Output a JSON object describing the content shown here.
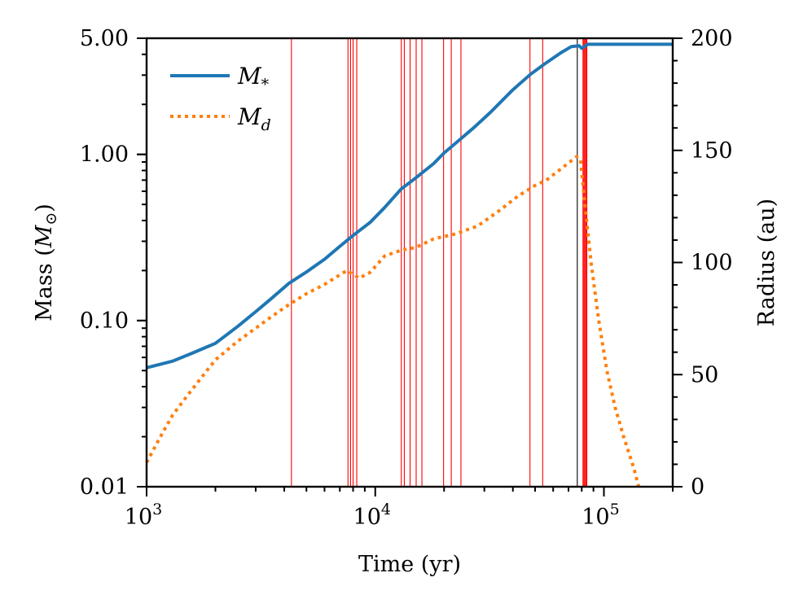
{
  "chart_data": {
    "type": "line",
    "x_scale": "log",
    "xlim": [
      1000,
      200000
    ],
    "xlabel": "Time (yr)",
    "x_ticks": [
      {
        "value": 1000,
        "base": "10",
        "exp": "3"
      },
      {
        "value": 10000,
        "base": "10",
        "exp": "4"
      },
      {
        "value": 100000,
        "base": "10",
        "exp": "5"
      }
    ],
    "left_axis": {
      "scale": "log",
      "ylim": [
        0.01,
        5.0
      ],
      "label_prefix": "Mass (",
      "label_symbol": "M",
      "label_sub": "⊙",
      "label_suffix": ")",
      "ticks": [
        {
          "value": 0.01,
          "label": "0.01"
        },
        {
          "value": 0.1,
          "label": "0.10"
        },
        {
          "value": 1.0,
          "label": "1.00"
        },
        {
          "value": 5.0,
          "label": "5.00"
        }
      ]
    },
    "right_axis": {
      "scale": "linear",
      "ylim": [
        0,
        200
      ],
      "label": "Radius (au)",
      "ticks": [
        {
          "value": 0,
          "label": "0"
        },
        {
          "value": 50,
          "label": "50"
        },
        {
          "value": 100,
          "label": "100"
        },
        {
          "value": 150,
          "label": "150"
        },
        {
          "value": 200,
          "label": "200"
        }
      ]
    },
    "legend_position": "top-left",
    "series": [
      {
        "name": "M*",
        "legend_symbol": "M",
        "legend_sub": "*",
        "color": "#1f77b4",
        "style": "solid",
        "points": [
          [
            1000,
            0.052
          ],
          [
            1300,
            0.057
          ],
          [
            1600,
            0.064
          ],
          [
            2000,
            0.073
          ],
          [
            2500,
            0.092
          ],
          [
            3000,
            0.113
          ],
          [
            3500,
            0.135
          ],
          [
            4200,
            0.168
          ],
          [
            5000,
            0.196
          ],
          [
            6000,
            0.234
          ],
          [
            7000,
            0.28
          ],
          [
            8000,
            0.325
          ],
          [
            9500,
            0.39
          ],
          [
            11000,
            0.48
          ],
          [
            13000,
            0.62
          ],
          [
            15000,
            0.72
          ],
          [
            18000,
            0.88
          ],
          [
            20000,
            1.02
          ],
          [
            23000,
            1.2
          ],
          [
            27000,
            1.45
          ],
          [
            32000,
            1.8
          ],
          [
            40000,
            2.45
          ],
          [
            48000,
            3.05
          ],
          [
            55000,
            3.5
          ],
          [
            65000,
            4.1
          ],
          [
            72000,
            4.45
          ],
          [
            78000,
            4.5
          ],
          [
            80000,
            4.35
          ],
          [
            85000,
            4.6
          ],
          [
            200000,
            4.6
          ]
        ]
      },
      {
        "name": "Md",
        "legend_symbol": "M",
        "legend_sub": "d",
        "color": "#ff7f0e",
        "style": "dotted",
        "points": [
          [
            1000,
            0.014
          ],
          [
            1150,
            0.02
          ],
          [
            1300,
            0.027
          ],
          [
            1500,
            0.035
          ],
          [
            1750,
            0.046
          ],
          [
            2000,
            0.058
          ],
          [
            2500,
            0.075
          ],
          [
            3000,
            0.09
          ],
          [
            3500,
            0.105
          ],
          [
            4200,
            0.125
          ],
          [
            5000,
            0.145
          ],
          [
            6000,
            0.165
          ],
          [
            7500,
            0.2
          ],
          [
            8000,
            0.19
          ],
          [
            8500,
            0.18
          ],
          [
            9500,
            0.195
          ],
          [
            11000,
            0.245
          ],
          [
            13000,
            0.265
          ],
          [
            15000,
            0.275
          ],
          [
            18000,
            0.31
          ],
          [
            22000,
            0.33
          ],
          [
            28000,
            0.37
          ],
          [
            35000,
            0.46
          ],
          [
            42000,
            0.56
          ],
          [
            50000,
            0.65
          ],
          [
            56000,
            0.7
          ],
          [
            65000,
            0.82
          ],
          [
            76000,
            0.97
          ],
          [
            79000,
            0.93
          ],
          [
            82000,
            0.55
          ],
          [
            88000,
            0.22
          ],
          [
            95000,
            0.1
          ],
          [
            103000,
            0.05
          ],
          [
            112000,
            0.03
          ],
          [
            122000,
            0.02
          ],
          [
            135000,
            0.013
          ],
          [
            142000,
            0.01
          ]
        ]
      }
    ],
    "vertical_lines": [
      {
        "x": 4300,
        "color": "#ff0000"
      },
      {
        "x": 7600,
        "color": "#ff0000"
      },
      {
        "x": 7800,
        "color": "#ff0000"
      },
      {
        "x": 8000,
        "color": "#ff0000"
      },
      {
        "x": 8300,
        "color": "#ff0000"
      },
      {
        "x": 13000,
        "color": "#ff0000"
      },
      {
        "x": 13400,
        "color": "#ff0000"
      },
      {
        "x": 14200,
        "color": "#ff0000"
      },
      {
        "x": 15100,
        "color": "#ff0000"
      },
      {
        "x": 16000,
        "color": "#ff0000"
      },
      {
        "x": 19900,
        "color": "#ff0000"
      },
      {
        "x": 21500,
        "color": "#ff0000"
      },
      {
        "x": 23700,
        "color": "#ff0000"
      },
      {
        "x": 47500,
        "color": "#ff0000"
      },
      {
        "x": 54000,
        "color": "#ff0000"
      },
      {
        "x": 76500,
        "color": "#000000"
      },
      {
        "x": 81000,
        "color": "#ff0000"
      },
      {
        "x": 81800,
        "color": "#ff0000"
      },
      {
        "x": 82600,
        "color": "#ff0000"
      },
      {
        "x": 83400,
        "color": "#ff0000"
      },
      {
        "x": 84200,
        "color": "#ff0000"
      }
    ]
  }
}
